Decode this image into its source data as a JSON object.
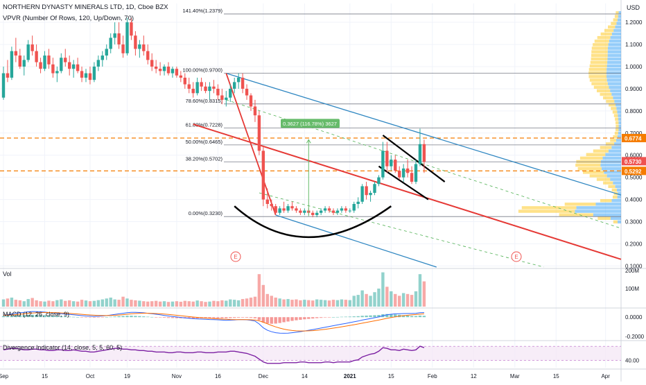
{
  "header": {
    "symbol_line": "NORTHERN DYNASTY MINERALS LTD, 1D, Cboe BZX",
    "indicator_line": "VPVR (Number Of Rows, 120, Up/Down, 70)"
  },
  "currency_label": "USD",
  "colors": {
    "up": "#26a69a",
    "down": "#ef5350",
    "trend_red": "#e53935",
    "channel_blue": "#2e86c1",
    "fib_line": "#787b86",
    "dashed_orange": "#f57c00",
    "vp_up": "#42a5f5",
    "vp_down": "#ffca28",
    "macd_line": "#2962ff",
    "signal_line": "#ff6d00",
    "div_line": "#7b1fa2",
    "div_band": "#f3e5f5",
    "measure_green": "#66bb6a"
  },
  "chart_data": {
    "type": "candlestick",
    "price_axis": {
      "ticks": [
        "1.2000",
        "1.1000",
        "1.0000",
        "0.9000",
        "0.8000",
        "0.7000",
        "0.6000",
        "0.5000",
        "0.4000",
        "0.3000",
        "0.2000",
        "0.1000"
      ],
      "min": 0.095,
      "max": 1.285
    },
    "time_axis": {
      "labels": [
        "Sep",
        "15",
        "Oct",
        "19",
        "Nov",
        "16",
        "Dec",
        "14",
        "2021",
        "15",
        "Feb",
        "12",
        "Mar",
        "15",
        "Apr"
      ]
    },
    "ohlc": [
      [
        0.86,
        1.0,
        0.85,
        0.97
      ],
      [
        0.97,
        1.03,
        0.93,
        0.95
      ],
      [
        0.95,
        1.09,
        0.94,
        1.07
      ],
      [
        1.07,
        1.13,
        1.02,
        1.05
      ],
      [
        1.05,
        1.08,
        0.99,
        1.0
      ],
      [
        1.0,
        1.05,
        0.96,
        1.03
      ],
      [
        1.03,
        1.12,
        1.02,
        1.1
      ],
      [
        1.1,
        1.14,
        1.05,
        1.07
      ],
      [
        1.07,
        1.1,
        1.0,
        1.02
      ],
      [
        1.02,
        1.04,
        0.97,
        0.99
      ],
      [
        0.99,
        1.07,
        0.98,
        1.05
      ],
      [
        1.05,
        1.08,
        0.99,
        1.01
      ],
      [
        1.01,
        1.04,
        0.95,
        0.97
      ],
      [
        0.97,
        1.0,
        0.93,
        0.98
      ],
      [
        0.98,
        1.06,
        0.97,
        1.04
      ],
      [
        1.04,
        1.08,
        1.0,
        1.02
      ],
      [
        1.02,
        1.05,
        0.96,
        0.99
      ],
      [
        0.99,
        1.03,
        0.95,
        1.01
      ],
      [
        1.01,
        1.04,
        0.97,
        0.98
      ],
      [
        0.98,
        1.0,
        0.93,
        0.95
      ],
      [
        0.95,
        0.99,
        0.93,
        0.97
      ],
      [
        0.97,
        1.0,
        0.92,
        0.94
      ],
      [
        0.94,
        1.02,
        0.93,
        1.0
      ],
      [
        1.0,
        1.05,
        0.98,
        1.03
      ],
      [
        1.03,
        1.07,
        1.0,
        1.05
      ],
      [
        1.05,
        1.1,
        1.03,
        1.08
      ],
      [
        1.08,
        1.15,
        1.06,
        1.13
      ],
      [
        1.13,
        1.2,
        1.1,
        1.15
      ],
      [
        1.15,
        1.2,
        1.08,
        1.1
      ],
      [
        1.1,
        1.14,
        1.04,
        1.06
      ],
      [
        1.06,
        1.22,
        1.05,
        1.2
      ],
      [
        1.2,
        1.22,
        1.12,
        1.14
      ],
      [
        1.14,
        1.16,
        1.05,
        1.08
      ],
      [
        1.08,
        1.12,
        1.04,
        1.1
      ],
      [
        1.1,
        1.14,
        1.05,
        1.07
      ],
      [
        1.07,
        1.1,
        1.01,
        1.03
      ],
      [
        1.03,
        1.06,
        0.98,
        1.0
      ],
      [
        1.0,
        1.03,
        0.97,
        0.99
      ],
      [
        0.99,
        1.02,
        0.96,
        0.98
      ],
      [
        0.98,
        1.01,
        0.96,
        1.0
      ],
      [
        1.0,
        1.02,
        0.96,
        0.97
      ],
      [
        0.97,
        1.0,
        0.95,
        0.99
      ],
      [
        0.99,
        1.0,
        0.95,
        0.96
      ],
      [
        0.96,
        0.98,
        0.93,
        0.95
      ],
      [
        0.95,
        0.97,
        0.9,
        0.92
      ],
      [
        0.92,
        0.95,
        0.88,
        0.9
      ],
      [
        0.9,
        0.93,
        0.86,
        0.88
      ],
      [
        0.88,
        0.95,
        0.87,
        0.93
      ],
      [
        0.93,
        0.95,
        0.89,
        0.91
      ],
      [
        0.91,
        0.93,
        0.88,
        0.89
      ],
      [
        0.89,
        0.93,
        0.85,
        0.91
      ],
      [
        0.91,
        0.94,
        0.88,
        0.9
      ],
      [
        0.9,
        0.92,
        0.85,
        0.87
      ],
      [
        0.87,
        0.9,
        0.83,
        0.85
      ],
      [
        0.85,
        0.89,
        0.82,
        0.86
      ],
      [
        0.86,
        0.92,
        0.84,
        0.9
      ],
      [
        0.9,
        0.95,
        0.88,
        0.93
      ],
      [
        0.93,
        0.97,
        0.9,
        0.95
      ],
      [
        0.95,
        0.97,
        0.88,
        0.9
      ],
      [
        0.9,
        0.92,
        0.85,
        0.87
      ],
      [
        0.87,
        0.88,
        0.8,
        0.82
      ],
      [
        0.82,
        0.85,
        0.75,
        0.78
      ],
      [
        0.78,
        0.8,
        0.6,
        0.62
      ],
      [
        0.62,
        0.64,
        0.37,
        0.4
      ],
      [
        0.4,
        0.45,
        0.36,
        0.38
      ],
      [
        0.38,
        0.4,
        0.35,
        0.37
      ],
      [
        0.37,
        0.38,
        0.33,
        0.34
      ],
      [
        0.34,
        0.37,
        0.33,
        0.36
      ],
      [
        0.36,
        0.39,
        0.34,
        0.35
      ],
      [
        0.35,
        0.38,
        0.34,
        0.37
      ],
      [
        0.37,
        0.39,
        0.35,
        0.36
      ],
      [
        0.36,
        0.37,
        0.34,
        0.35
      ],
      [
        0.35,
        0.36,
        0.33,
        0.34
      ],
      [
        0.34,
        0.36,
        0.33,
        0.35
      ],
      [
        0.35,
        0.36,
        0.33,
        0.34
      ],
      [
        0.34,
        0.35,
        0.32,
        0.33
      ],
      [
        0.33,
        0.35,
        0.32,
        0.34
      ],
      [
        0.34,
        0.36,
        0.33,
        0.35
      ],
      [
        0.35,
        0.37,
        0.34,
        0.36
      ],
      [
        0.36,
        0.37,
        0.34,
        0.35
      ],
      [
        0.35,
        0.36,
        0.33,
        0.34
      ],
      [
        0.34,
        0.36,
        0.33,
        0.35
      ],
      [
        0.35,
        0.37,
        0.34,
        0.36
      ],
      [
        0.36,
        0.37,
        0.34,
        0.35
      ],
      [
        0.35,
        0.36,
        0.34,
        0.35
      ],
      [
        0.35,
        0.39,
        0.34,
        0.38
      ],
      [
        0.38,
        0.41,
        0.36,
        0.39
      ],
      [
        0.39,
        0.47,
        0.38,
        0.46
      ],
      [
        0.46,
        0.48,
        0.4,
        0.42
      ],
      [
        0.42,
        0.44,
        0.39,
        0.43
      ],
      [
        0.43,
        0.48,
        0.42,
        0.47
      ],
      [
        0.47,
        0.51,
        0.46,
        0.5
      ],
      [
        0.5,
        0.66,
        0.49,
        0.62
      ],
      [
        0.62,
        0.66,
        0.52,
        0.55
      ],
      [
        0.55,
        0.6,
        0.53,
        0.58
      ],
      [
        0.58,
        0.6,
        0.52,
        0.53
      ],
      [
        0.53,
        0.55,
        0.49,
        0.5
      ],
      [
        0.5,
        0.56,
        0.48,
        0.54
      ],
      [
        0.54,
        0.58,
        0.5,
        0.52
      ],
      [
        0.52,
        0.55,
        0.47,
        0.48
      ],
      [
        0.48,
        0.58,
        0.47,
        0.56
      ],
      [
        0.56,
        0.72,
        0.55,
        0.65
      ],
      [
        0.65,
        0.67,
        0.52,
        0.57
      ]
    ],
    "volume": [
      40,
      45,
      50,
      38,
      35,
      30,
      42,
      48,
      35,
      30,
      28,
      33,
      30,
      36,
      40,
      32,
      35,
      30,
      28,
      38,
      34,
      30,
      32,
      36,
      40,
      45,
      50,
      40,
      38,
      55,
      45,
      38,
      35,
      33,
      30,
      28,
      30,
      32,
      28,
      30,
      26,
      28,
      30,
      27,
      32,
      30,
      28,
      34,
      30,
      26,
      28,
      32,
      30,
      35,
      33,
      40,
      38,
      35,
      42,
      45,
      50,
      55,
      180,
      120,
      70,
      60,
      50,
      45,
      40,
      42,
      38,
      40,
      35,
      38,
      36,
      34,
      40,
      38,
      36,
      34,
      38,
      36,
      40,
      38,
      36,
      60,
      65,
      90,
      70,
      60,
      80,
      100,
      190,
      110,
      85,
      70,
      60,
      75,
      70,
      65,
      85,
      180,
      140
    ],
    "macd_hist": [
      0.01,
      0.012,
      0.015,
      0.018,
      0.02,
      0.022,
      0.024,
      0.025,
      0.024,
      0.022,
      0.02,
      0.018,
      0.015,
      0.012,
      0.01,
      0.008,
      0.005,
      0.003,
      0.001,
      -0.001,
      -0.003,
      -0.004,
      -0.005,
      -0.004,
      -0.002,
      0.001,
      0.004,
      0.007,
      0.01,
      0.012,
      0.014,
      0.015,
      0.013,
      0.011,
      0.008,
      0.005,
      0.002,
      -0.001,
      -0.004,
      -0.006,
      -0.008,
      -0.009,
      -0.01,
      -0.011,
      -0.012,
      -0.013,
      -0.014,
      -0.013,
      -0.012,
      -0.011,
      -0.01,
      -0.01,
      -0.011,
      -0.012,
      -0.012,
      -0.01,
      -0.008,
      -0.006,
      -0.005,
      -0.006,
      -0.008,
      -0.012,
      -0.03,
      -0.055,
      -0.065,
      -0.068,
      -0.066,
      -0.06,
      -0.052,
      -0.045,
      -0.038,
      -0.032,
      -0.027,
      -0.022,
      -0.018,
      -0.014,
      -0.01,
      -0.007,
      -0.004,
      -0.002,
      0.0,
      0.002,
      0.004,
      0.005,
      0.006,
      0.008,
      0.01,
      0.014,
      0.016,
      0.018,
      0.02,
      0.022,
      0.03,
      0.032,
      0.031,
      0.028,
      0.024,
      0.02,
      0.016,
      0.012,
      0.012,
      0.016,
      0.014
    ],
    "macd_line": [
      0.02,
      0.025,
      0.032,
      0.04,
      0.045,
      0.05,
      0.055,
      0.058,
      0.057,
      0.055,
      0.052,
      0.048,
      0.044,
      0.04,
      0.036,
      0.032,
      0.028,
      0.024,
      0.02,
      0.016,
      0.012,
      0.01,
      0.008,
      0.009,
      0.012,
      0.016,
      0.022,
      0.028,
      0.034,
      0.04,
      0.046,
      0.05,
      0.05,
      0.048,
      0.045,
      0.04,
      0.035,
      0.03,
      0.024,
      0.018,
      0.012,
      0.007,
      0.002,
      -0.003,
      -0.008,
      -0.012,
      -0.016,
      -0.018,
      -0.02,
      -0.022,
      -0.024,
      -0.025,
      -0.027,
      -0.03,
      -0.032,
      -0.031,
      -0.029,
      -0.026,
      -0.025,
      -0.027,
      -0.032,
      -0.04,
      -0.07,
      -0.11,
      -0.135,
      -0.15,
      -0.16,
      -0.165,
      -0.166,
      -0.164,
      -0.16,
      -0.155,
      -0.149,
      -0.142,
      -0.135,
      -0.128,
      -0.12,
      -0.112,
      -0.104,
      -0.096,
      -0.088,
      -0.08,
      -0.072,
      -0.064,
      -0.056,
      -0.048,
      -0.04,
      -0.03,
      -0.022,
      -0.014,
      -0.006,
      0.002,
      0.015,
      0.024,
      0.03,
      0.034,
      0.036,
      0.037,
      0.038,
      0.038,
      0.04,
      0.046,
      0.048
    ],
    "divergence": [
      55,
      56,
      57,
      57,
      56,
      55,
      55,
      56,
      56,
      55,
      55,
      54,
      54,
      55,
      55,
      54,
      54,
      55,
      54,
      53,
      53,
      52,
      52,
      53,
      54,
      55,
      56,
      57,
      57,
      56,
      56,
      55,
      55,
      54,
      54,
      53,
      53,
      52,
      52,
      52,
      51,
      51,
      52,
      52,
      51,
      51,
      51,
      52,
      52,
      51,
      51,
      51,
      52,
      52,
      52,
      53,
      53,
      52,
      51,
      50,
      48,
      46,
      42,
      38,
      36,
      36,
      36,
      36,
      37,
      37,
      37,
      37,
      38,
      38,
      37,
      37,
      37,
      37,
      38,
      38,
      37,
      38,
      38,
      38,
      38,
      40,
      41,
      45,
      47,
      49,
      50,
      53,
      58,
      57,
      55,
      55,
      54,
      56,
      55,
      54,
      55,
      60,
      58
    ],
    "dates": {
      "first_index_date_label": "Sep",
      "index_labels": [
        [
          0,
          "Sep"
        ],
        [
          10,
          "15"
        ],
        [
          21,
          "Oct"
        ],
        [
          30,
          "19"
        ],
        [
          42,
          "Nov"
        ],
        [
          52,
          "16"
        ],
        [
          63,
          "Dec"
        ],
        [
          73,
          "14"
        ],
        [
          84,
          "2021"
        ],
        [
          94,
          "15"
        ],
        [
          104,
          "Feb"
        ],
        [
          114,
          "12"
        ],
        [
          124,
          "Mar"
        ],
        [
          134,
          "15"
        ],
        [
          146,
          "Apr"
        ]
      ]
    },
    "fib_levels": [
      {
        "label": "141.40%(1.2379)",
        "price": 1.2379
      },
      {
        "label": "100.00%(0.9700)",
        "price": 0.97
      },
      {
        "label": "78.60%(0.8315)",
        "price": 0.8315
      },
      {
        "label": "61.80%(0.7228)",
        "price": 0.7228
      },
      {
        "label": "50.00%(0.6465)",
        "price": 0.6465
      },
      {
        "label": "38.20%(0.5702)",
        "price": 0.5702
      },
      {
        "label": "0.00%(0.3230)",
        "price": 0.323
      }
    ],
    "price_tags": [
      {
        "label": "0.6774",
        "price": 0.6774,
        "color": "#f57c00"
      },
      {
        "label": "0.5730",
        "price": 0.573,
        "color": "#ef5350"
      },
      {
        "label": "0.5292",
        "price": 0.5292,
        "color": "#f57c00"
      }
    ],
    "dashed_levels": [
      0.6774,
      0.5292
    ],
    "measure_label": "0.3627 (116.78%) 3627",
    "earnings_label": "E",
    "panes": {
      "volume": {
        "title": "Vol",
        "ticks": [
          "200M",
          "100M"
        ],
        "max": 200
      },
      "macd": {
        "title": "MACD (12, 26, close, 9)",
        "ticks": [
          "0.0000",
          "-0.2000"
        ],
        "min": -0.22,
        "max": 0.08
      },
      "divergence": {
        "title": "Divergence Indicator (14, close, 5, 5, 60, 5)",
        "ticks": [
          "40.00"
        ],
        "min": 30,
        "max": 65
      }
    }
  }
}
